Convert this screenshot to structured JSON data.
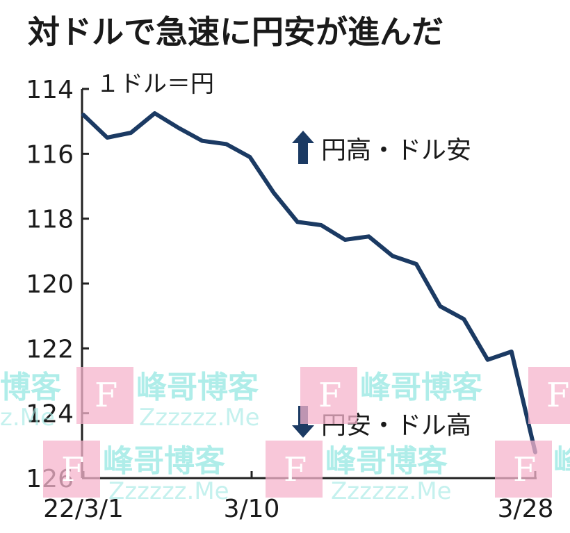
{
  "chart_data": {
    "type": "line",
    "title": "対ドルで急速に円安が進んだ",
    "unit_label": "１ドル＝円",
    "y_axis": {
      "reversed": true,
      "ylim": [
        114,
        126
      ],
      "ticks": [
        "114",
        "116",
        "118",
        "120",
        "122",
        "124",
        "126"
      ]
    },
    "x_axis": {
      "tick_labels": [
        "22/3/1",
        "3/10",
        "3/28"
      ]
    },
    "annotations": {
      "up": "円高・ドル安",
      "down": "円安・ドル高"
    },
    "series": [
      {
        "color": "#1b3a63",
        "values": [
          114.8,
          115.5,
          115.35,
          114.75,
          115.2,
          115.6,
          115.7,
          116.1,
          117.2,
          118.1,
          118.2,
          118.65,
          118.55,
          119.15,
          119.4,
          120.7,
          121.1,
          122.35,
          122.1,
          125.2
        ]
      }
    ]
  },
  "watermark": {
    "brand": "峰哥博客",
    "letter": "F",
    "url": "Zzzzzz.Me",
    "partial_left": "博客",
    "partial_right": "峰",
    "partial_url": "z.Me"
  }
}
